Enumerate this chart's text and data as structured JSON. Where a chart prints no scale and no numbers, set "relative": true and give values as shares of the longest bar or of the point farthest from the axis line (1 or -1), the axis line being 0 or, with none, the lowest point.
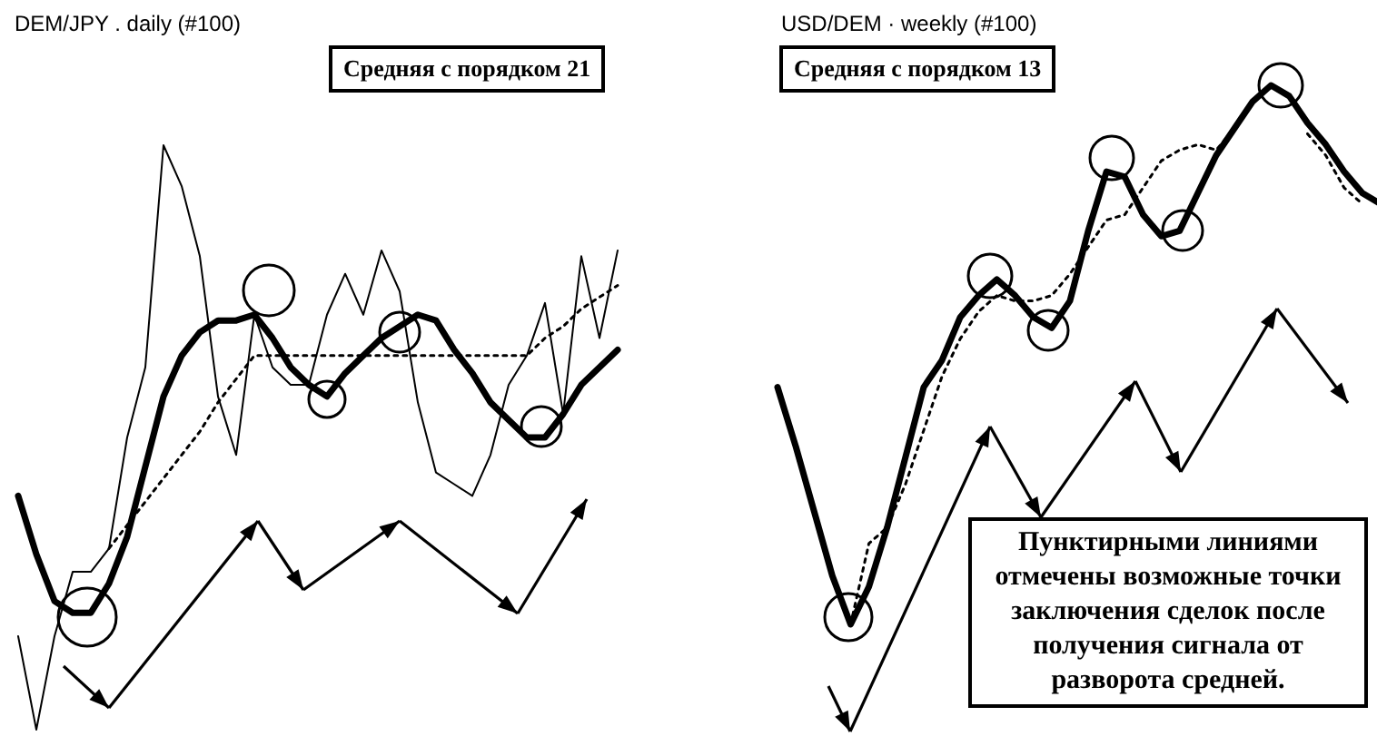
{
  "chart_data": [
    {
      "type": "line",
      "title": "DEM/JPY . daily (#100)",
      "relative": true,
      "categories": [
        null,
        null,
        null,
        null,
        null,
        null,
        null,
        null,
        null,
        null,
        null,
        null,
        null,
        null,
        null,
        null,
        null,
        null,
        null,
        null,
        null,
        null,
        null,
        null,
        null,
        null,
        null,
        null,
        null,
        null,
        null,
        null,
        null,
        null
      ],
      "series": [
        {
          "color": "#000000",
          "values": [
            0.16,
            0.0,
            0.16,
            0.27,
            0.27,
            0.31,
            0.5,
            0.62,
            1.0,
            0.93,
            0.81,
            0.57,
            0.47,
            0.71,
            0.62,
            0.59,
            0.59,
            0.71,
            0.78,
            0.71,
            0.82,
            0.75,
            0.56,
            0.44,
            0.42,
            0.4,
            0.47,
            0.59,
            0.64,
            0.73,
            0.54,
            0.81,
            0.67,
            0.82
          ]
        },
        {
          "color": "#000000",
          "values": [
            0.4,
            0.3,
            0.22,
            0.2,
            0.2,
            0.25,
            0.33,
            0.45,
            0.57,
            0.64,
            0.68,
            0.7,
            0.7,
            0.71,
            0.67,
            0.62,
            0.59,
            0.57,
            0.61,
            0.64,
            0.67,
            0.69,
            0.71,
            0.7,
            0.65,
            0.61,
            0.56,
            0.53,
            0.5,
            0.5,
            0.54,
            0.59,
            0.62,
            0.65
          ]
        },
        {
          "color": "#000000",
          "line_style": "dotted",
          "values": [
            null,
            null,
            null,
            null,
            null,
            0.31,
            0.35,
            0.39,
            0.43,
            0.47,
            0.51,
            0.56,
            0.6,
            0.64,
            0.64,
            0.64,
            0.64,
            0.64,
            0.64,
            0.64,
            0.64,
            0.64,
            0.64,
            0.64,
            0.64,
            0.64,
            0.64,
            0.64,
            0.64,
            0.67,
            0.69,
            0.72,
            0.74,
            0.76
          ]
        }
      ],
      "annotations": [
        "Средняя с порядком 21"
      ]
    },
    {
      "type": "line",
      "title": "USD/DEM · weekly (#100)",
      "relative": true,
      "categories": [
        null,
        null,
        null,
        null,
        null,
        null,
        null,
        null,
        null,
        null,
        null,
        null,
        null,
        null,
        null,
        null,
        null,
        null,
        null,
        null,
        null,
        null,
        null,
        null,
        null,
        null,
        null,
        null,
        null,
        null,
        null,
        null,
        null,
        null
      ],
      "series": [
        {
          "color": "#000000",
          "values": [
            0.44,
            0.33,
            0.21,
            0.09,
            0.0,
            0.07,
            0.18,
            0.31,
            0.44,
            0.49,
            0.57,
            0.61,
            0.64,
            0.61,
            0.57,
            0.55,
            0.6,
            0.73,
            0.84,
            0.83,
            0.76,
            0.72,
            0.73,
            0.8,
            0.87,
            0.92,
            0.97,
            1.0,
            0.98,
            0.93,
            0.89,
            0.84,
            0.8,
            0.78
          ]
        },
        {
          "color": "#000000",
          "line_style": "dotted",
          "values": [
            null,
            null,
            null,
            null,
            0.0,
            0.15,
            0.18,
            0.26,
            0.36,
            0.46,
            0.53,
            0.58,
            0.61,
            0.6,
            0.6,
            0.61,
            0.65,
            0.7,
            0.75,
            0.76,
            0.81,
            0.86,
            0.88,
            0.89,
            0.88,
            0.92,
            null,
            null,
            null,
            0.91,
            0.87,
            0.81,
            0.78,
            null
          ]
        }
      ],
      "annotations": [
        "Средняя с порядком 13",
        "Пунктирными линиями отмечены возможные точки заключения сделок после получения сигнала от разворота средней."
      ]
    }
  ]
}
